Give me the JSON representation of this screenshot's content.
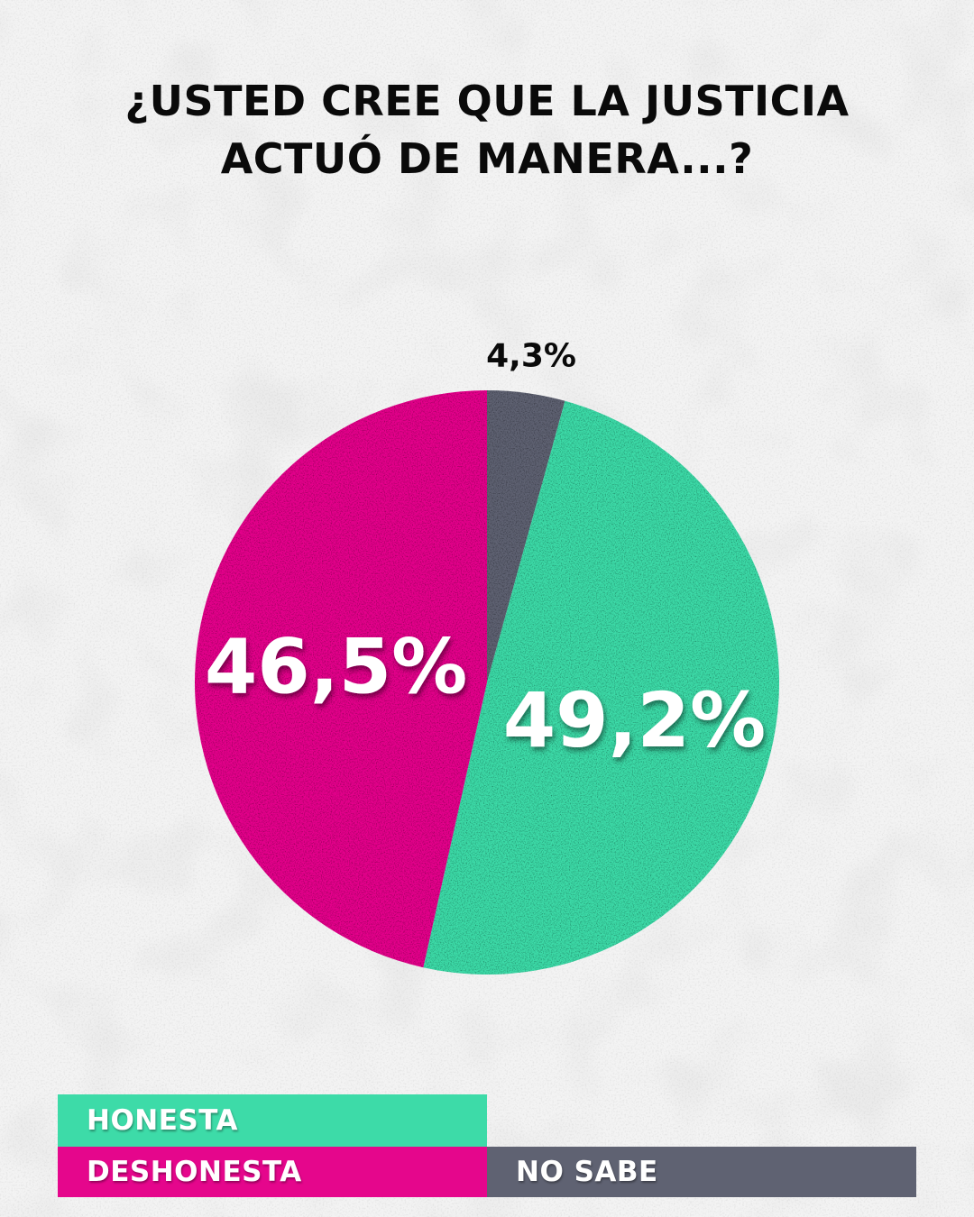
{
  "title": {
    "line1": "¿USTED CREE QUE LA JUSTICIA",
    "line2": "ACTUÓ DE MANERA...?"
  },
  "chart_data": {
    "type": "pie",
    "title": "¿USTED CREE QUE LA JUSTICIA ACTUÓ DE MANERA...?",
    "slices": [
      {
        "label": "NO SABE",
        "value": 4.3,
        "value_label": "4,3%",
        "color": "#5f6272"
      },
      {
        "label": "HONESTA",
        "value": 49.2,
        "value_label": "49,2%",
        "color": "#3ddba8"
      },
      {
        "label": "DESHONESTA",
        "value": 46.5,
        "value_label": "46,5%",
        "color": "#e5068c"
      }
    ],
    "start": "top",
    "direction": "clockwise",
    "legend_position": "bottom"
  },
  "legend": [
    {
      "label": "HONESTA",
      "color": "#3ddba8"
    },
    {
      "label": "DESHONESTA",
      "color": "#e5068c"
    },
    {
      "label": "NO SABE",
      "color": "#5f6272"
    }
  ]
}
